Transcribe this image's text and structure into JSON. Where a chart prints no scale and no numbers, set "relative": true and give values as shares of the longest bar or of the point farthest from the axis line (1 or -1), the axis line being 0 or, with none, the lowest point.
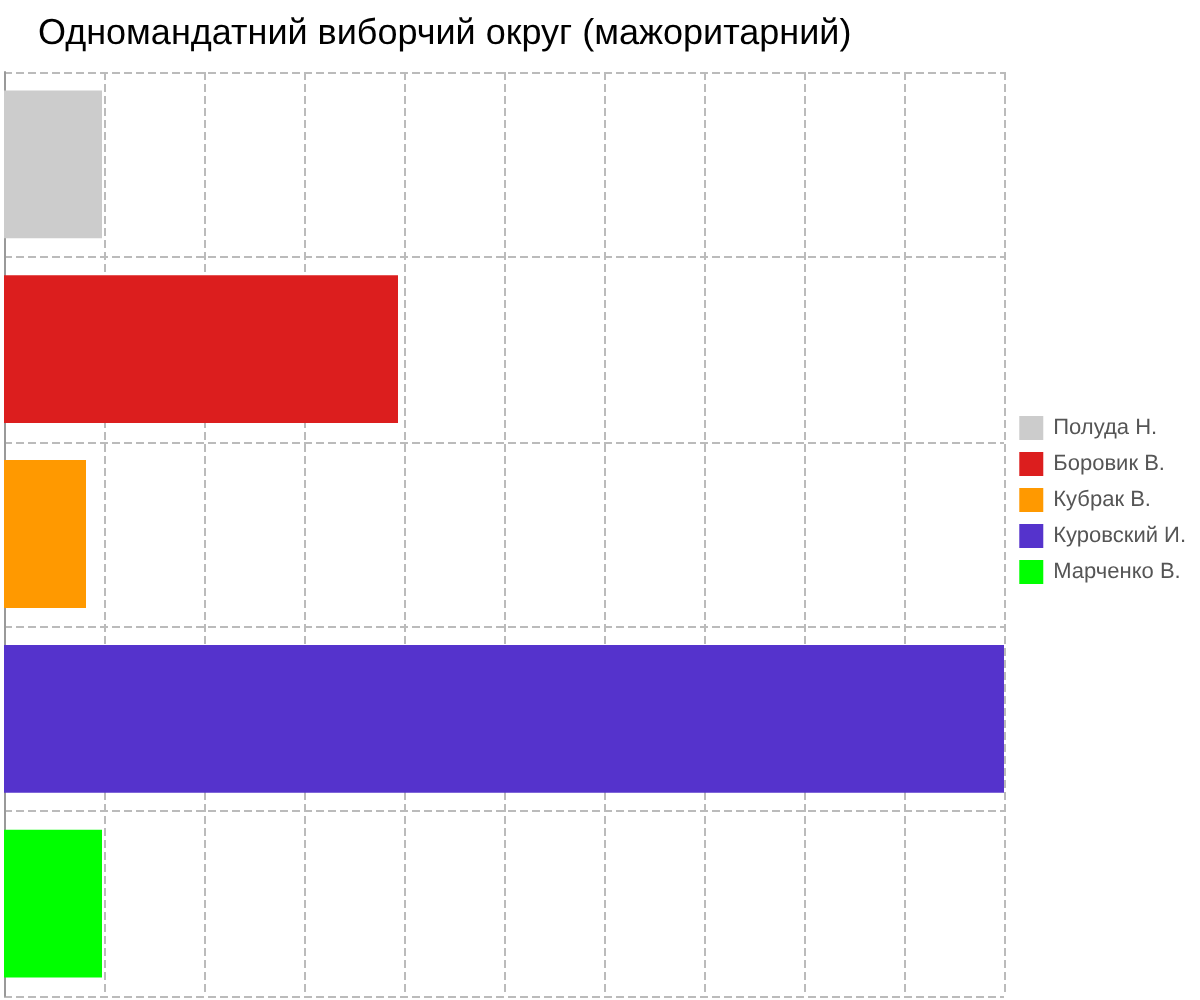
{
  "chart_data": {
    "type": "bar",
    "orientation": "horizontal",
    "relative": true,
    "stacked": true,
    "title": "Одномандатний виборчий округ (мажоритарний)",
    "categories": [
      null,
      null,
      null,
      null,
      null
    ],
    "series": [
      {
        "name": "Полуда Н.",
        "color": "#cccccc",
        "values": [
          0.098,
          null,
          null,
          null,
          null
        ]
      },
      {
        "name": "Боровик В.",
        "color": "#dc1e1e",
        "values": [
          null,
          0.394,
          null,
          null,
          null
        ]
      },
      {
        "name": "Кубрак В.",
        "color": "#ff9900",
        "values": [
          null,
          null,
          0.082,
          null,
          null
        ]
      },
      {
        "name": "Куровский И.",
        "color": "#5533cc",
        "values": [
          null,
          null,
          null,
          1,
          null
        ]
      },
      {
        "name": "Марченко В.",
        "color": "#00ff00",
        "values": [
          null,
          null,
          null,
          null,
          0.098
        ]
      }
    ],
    "grid": true,
    "legend": "right",
    "tick_labels": false
  }
}
